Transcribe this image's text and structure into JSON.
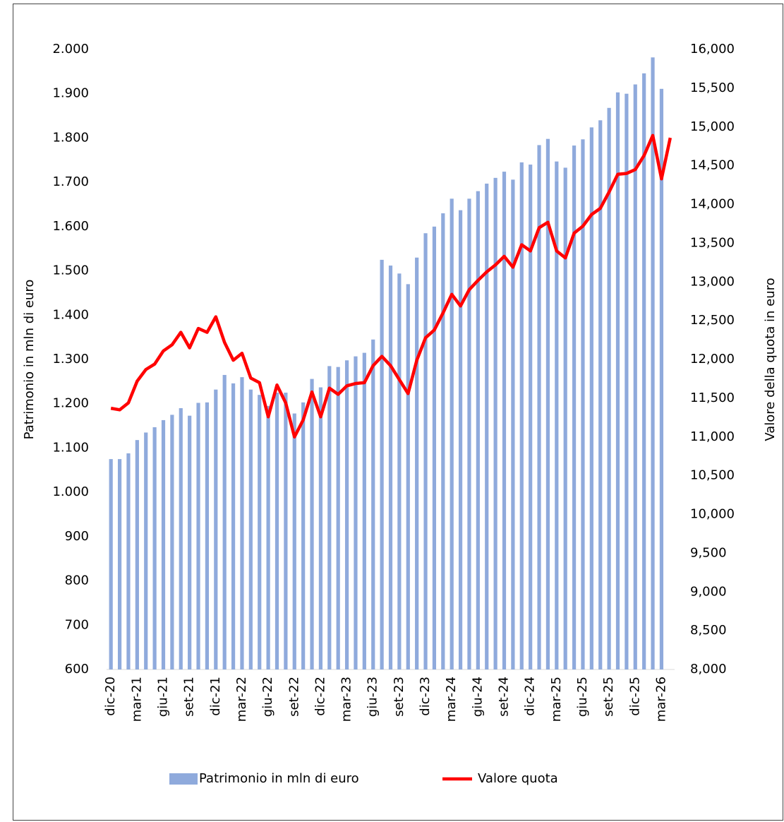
{
  "chart_data": {
    "type": "bar_line",
    "categories": [
      "dic-20",
      null,
      null,
      "mar-21",
      null,
      null,
      "giu-21",
      null,
      null,
      "set-21",
      null,
      null,
      "dic-21",
      null,
      null,
      "mar-22",
      null,
      null,
      "giu-22",
      null,
      null,
      "set-22",
      null,
      null,
      "dic-22",
      null,
      null,
      "mar-23",
      null,
      null,
      "giu-23",
      null,
      null,
      "set-23",
      null,
      null,
      "dic-23",
      null,
      null,
      "mar-24",
      null,
      null,
      "giu-24",
      null,
      null,
      "set-24",
      null,
      null,
      "dic-24",
      null,
      null,
      "mar-25",
      null,
      null,
      "giu-25",
      null,
      null,
      "set-25",
      null,
      null,
      "dic-25",
      null,
      null,
      "mar-26",
      null
    ],
    "series": [
      {
        "name": "Patrimonio in mln di euro",
        "type": "bar",
        "color": "#8faadc",
        "axis": "y",
        "values": [
          1075,
          1075,
          1088,
          1118,
          1135,
          1147,
          1163,
          1175,
          1190,
          1173,
          1202,
          1203,
          1232,
          1265,
          1246,
          1260,
          1232,
          1220,
          1195,
          1225,
          1225,
          1178,
          1203,
          1256,
          1237,
          1285,
          1283,
          1298,
          1307,
          1315,
          1345,
          1525,
          1512,
          1494,
          1470,
          1530,
          1585,
          1600,
          1630,
          1663,
          1637,
          1663,
          1680,
          1697,
          1710,
          1724,
          1706,
          1745,
          1740,
          1784,
          1798,
          1747,
          1733,
          1783,
          1797,
          1824,
          1840,
          1868,
          1903,
          1900,
          1921,
          1946,
          1982,
          1911,
          null
        ]
      },
      {
        "name": "Valore quota",
        "type": "line",
        "color": "#ff0000",
        "axis": "y2",
        "values": [
          11370,
          11350,
          11440,
          11720,
          11870,
          11940,
          12110,
          12190,
          12350,
          12150,
          12400,
          12350,
          12550,
          12220,
          11990,
          12080,
          11760,
          11700,
          11260,
          11670,
          11440,
          11000,
          11220,
          11580,
          11260,
          11630,
          11550,
          11660,
          11690,
          11700,
          11920,
          12040,
          11920,
          11740,
          11560,
          11990,
          12280,
          12380,
          12600,
          12840,
          12690,
          12900,
          13020,
          13130,
          13220,
          13330,
          13190,
          13480,
          13400,
          13700,
          13770,
          13400,
          13310,
          13630,
          13720,
          13870,
          13950,
          14160,
          14390,
          14400,
          14450,
          14630,
          14890,
          14330,
          14860
        ]
      }
    ],
    "y_label": "Patrimonio in mln di euro",
    "y2_label": "Valore della quota in euro",
    "ylim": [
      600,
      2000
    ],
    "yticks": [
      600,
      700,
      800,
      900,
      {
        "value": 1000,
        "label": "1.000"
      },
      {
        "value": 1100,
        "label": "1.100"
      },
      {
        "value": 1200,
        "label": "1.200"
      },
      {
        "value": 1300,
        "label": "1.300"
      },
      {
        "value": 1400,
        "label": "1.400"
      },
      {
        "value": 1500,
        "label": "1.500"
      },
      {
        "value": 1600,
        "label": "1.600"
      },
      {
        "value": 1700,
        "label": "1.700"
      },
      {
        "value": 1800,
        "label": "1.800"
      },
      {
        "value": 1900,
        "label": "1.900"
      },
      {
        "value": 2000,
        "label": "2.000"
      }
    ],
    "y2lim": [
      8000,
      16000
    ],
    "y2ticks": [
      {
        "value": 8000,
        "label": "8,000"
      },
      {
        "value": 8500,
        "label": "8,500"
      },
      {
        "value": 9000,
        "label": "9,000"
      },
      {
        "value": 9500,
        "label": "9,500"
      },
      {
        "value": 10000,
        "label": "10,000"
      },
      {
        "value": 10500,
        "label": "10,500"
      },
      {
        "value": 11000,
        "label": "11,000"
      },
      {
        "value": 11500,
        "label": "11,500"
      },
      {
        "value": 12000,
        "label": "12,000"
      },
      {
        "value": 12500,
        "label": "12,500"
      },
      {
        "value": 13000,
        "label": "13,000"
      },
      {
        "value": 13500,
        "label": "13,500"
      },
      {
        "value": 14000,
        "label": "14,000"
      },
      {
        "value": 14500,
        "label": "14,500"
      },
      {
        "value": 15000,
        "label": "15,000"
      },
      {
        "value": 15500,
        "label": "15,500"
      },
      {
        "value": 16000,
        "label": "16,000"
      }
    ],
    "grid": false,
    "legend": "bottom"
  }
}
